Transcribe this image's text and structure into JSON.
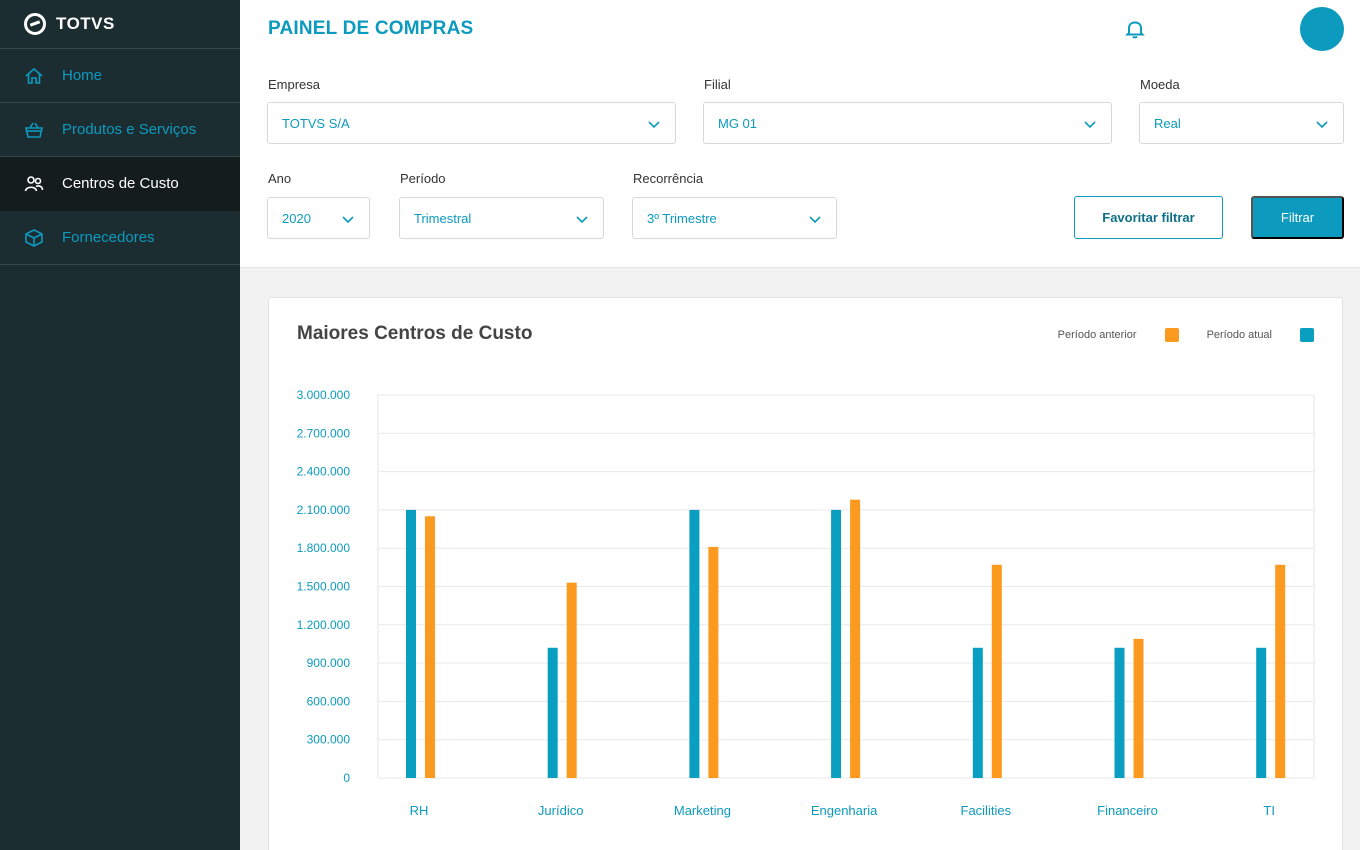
{
  "sidebar": {
    "brand": "TOTVS",
    "items": [
      {
        "label": "Home",
        "icon": "home-icon",
        "active": false
      },
      {
        "label": "Produtos e Serviços",
        "icon": "basket-icon",
        "active": false
      },
      {
        "label": "Centros de Custo",
        "icon": "users-icon",
        "active": true
      },
      {
        "label": "Fornecedores",
        "icon": "box-icon",
        "active": false
      }
    ]
  },
  "header": {
    "title": "PAINEL DE COMPRAS",
    "notification_icon": "bell-icon"
  },
  "filters": {
    "empresa": {
      "label": "Empresa",
      "value": "TOTVS S/A"
    },
    "filial": {
      "label": "Filial",
      "value": "MG 01"
    },
    "moeda": {
      "label": "Moeda",
      "value": "Real"
    },
    "ano": {
      "label": "Ano",
      "value": "2020"
    },
    "periodo": {
      "label": "Período",
      "value": "Trimestral"
    },
    "recorrencia": {
      "label": "Recorrência",
      "value": "3º Trimestre"
    },
    "favorite_button": "Favoritar filtrar",
    "filter_button": "Filtrar"
  },
  "colors": {
    "accent": "#0c9abe",
    "sidebar_bg": "#1c2d32",
    "series_current": "#0a9ec0",
    "series_previous": "#fb9a1f"
  },
  "chart_data": {
    "type": "bar",
    "title": "Maiores Centros de Custo",
    "categories": [
      "RH",
      "Jurídico",
      "Marketing",
      "Engenharia",
      "Facilities",
      "Financeiro",
      "TI"
    ],
    "series": [
      {
        "name": "Período atual",
        "values": [
          2100000,
          1020000,
          2100000,
          2100000,
          1020000,
          1020000,
          1020000
        ]
      },
      {
        "name": "Período anterior",
        "values": [
          2050000,
          1530000,
          1810000,
          2180000,
          1670000,
          1090000,
          1670000
        ]
      }
    ],
    "yticks": [
      "0",
      "300.000",
      "600.000",
      "900.000",
      "1.200.000",
      "1.500.000",
      "1.800.000",
      "2.100.000",
      "2.400.000",
      "2.700.000",
      "3.000.000"
    ],
    "ylim": [
      0,
      3000000
    ],
    "legend": [
      "Período anterior",
      "Período atual"
    ],
    "legend_position": "top-right",
    "grid": true
  }
}
